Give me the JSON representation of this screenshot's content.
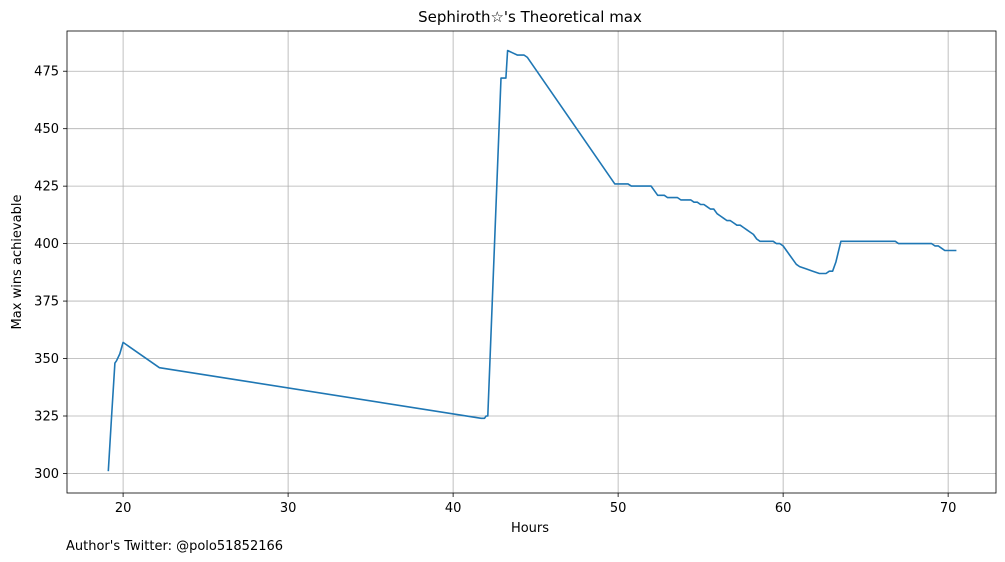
{
  "chart_data": {
    "type": "line",
    "title": "Sephiroth☆'s Theoretical max",
    "xlabel": "Hours",
    "ylabel": "Max wins achievable",
    "xlim": [
      16.6,
      72.9
    ],
    "ylim": [
      291.5,
      492.5
    ],
    "xticks": [
      20,
      30,
      40,
      50,
      60,
      70
    ],
    "yticks": [
      300,
      325,
      350,
      375,
      400,
      425,
      450,
      475
    ],
    "grid": true,
    "color": "#1f77b4",
    "series": [
      {
        "x": [
          19.1,
          19.3,
          19.5,
          19.6,
          19.8,
          20.0,
          22.2,
          41.7,
          41.9,
          42.0,
          42.1,
          42.9,
          43.0,
          43.1,
          43.2,
          43.3,
          43.6,
          43.9,
          44.1,
          44.3,
          44.5,
          49.8,
          50.0,
          50.2,
          50.4,
          50.6,
          50.8,
          51.0,
          51.2,
          51.4,
          51.6,
          51.8,
          52.0,
          52.2,
          52.4,
          52.6,
          52.8,
          53.0,
          53.2,
          53.4,
          53.6,
          53.8,
          54.0,
          54.2,
          54.4,
          54.6,
          54.8,
          55.0,
          55.2,
          55.4,
          55.6,
          55.8,
          56.0,
          56.2,
          56.4,
          56.6,
          56.8,
          57.0,
          57.2,
          57.4,
          57.6,
          57.8,
          58.0,
          58.2,
          58.4,
          58.6,
          58.8,
          59.0,
          59.2,
          59.4,
          59.6,
          59.8,
          60.0,
          60.2,
          60.4,
          60.6,
          60.8,
          61.0,
          61.4,
          61.8,
          62.2,
          62.6,
          62.8,
          63.0,
          63.2,
          63.5,
          63.6,
          63.8,
          64.0,
          66.8,
          67.0,
          68.8,
          69.0,
          69.2,
          69.4,
          69.6,
          69.8,
          70.0,
          70.2,
          70.5
        ],
        "y": [
          301,
          325,
          348,
          349,
          352,
          357,
          346,
          324,
          324,
          325,
          325,
          472,
          472,
          472,
          472,
          484,
          483,
          482,
          482,
          482,
          481,
          426,
          426,
          426,
          426,
          426,
          425,
          425,
          425,
          425,
          425,
          425,
          425,
          423,
          421,
          421,
          421,
          420,
          420,
          420,
          420,
          419,
          419,
          419,
          419,
          418,
          418,
          417,
          417,
          416,
          415,
          415,
          413,
          412,
          411,
          410,
          410,
          409,
          408,
          408,
          407,
          406,
          405,
          404,
          402,
          401,
          401,
          401,
          401,
          401,
          400,
          400,
          399,
          397,
          395,
          393,
          391,
          390,
          389,
          388,
          387,
          387,
          388,
          388,
          392,
          401,
          401,
          401,
          401,
          401,
          400,
          400,
          400,
          399,
          399,
          398,
          397,
          397,
          397,
          397
        ]
      }
    ]
  },
  "footer": {
    "text": "Author's Twitter: @polo51852166"
  }
}
